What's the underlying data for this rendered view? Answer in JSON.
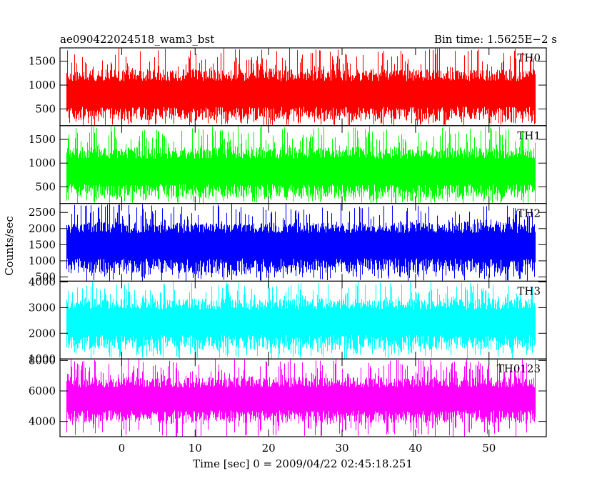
{
  "chart_data": {
    "type": "line",
    "title_left": "ae090422024518_wam3_bst",
    "title_right": "Bin time: 1.5625E−2 s",
    "xlabel": "Time [sec] 0 = 2009/04/22 02:45:18.251",
    "ylabel": "Counts/sec",
    "xlim": [
      -8.4,
      57.8
    ],
    "x_ticks": [
      0,
      10,
      20,
      30,
      40,
      50
    ],
    "data_x_range": [
      -7.5,
      56.2
    ],
    "grid": false,
    "panels": [
      {
        "name": "TH0",
        "color": "#ff0000",
        "ylim": [
          150,
          1780
        ],
        "y_ticks": [
          500,
          1000,
          1500
        ],
        "typical_range": [
          260,
          1330
        ],
        "extreme_range": [
          150,
          1780
        ],
        "mean": 780
      },
      {
        "name": "TH1",
        "color": "#00ff00",
        "ylim": [
          150,
          1790
        ],
        "y_ticks": [
          500,
          1000,
          1500
        ],
        "typical_range": [
          270,
          1340
        ],
        "extreme_range": [
          150,
          1790
        ],
        "mean": 790
      },
      {
        "name": "TH2",
        "color": "#0000ff",
        "ylim": [
          370,
          2780
        ],
        "y_ticks": [
          500,
          1000,
          1500,
          2000,
          2500
        ],
        "typical_range": [
          620,
          2200
        ],
        "extreme_range": [
          370,
          2780
        ],
        "mean": 1450
      },
      {
        "name": "TH3",
        "color": "#00ffff",
        "ylim": [
          1000,
          4030
        ],
        "y_ticks": [
          1000,
          2000,
          3000,
          4000
        ],
        "typical_range": [
          1350,
          3350
        ],
        "extreme_range": [
          1000,
          4030
        ],
        "mean": 2400
      },
      {
        "name": "TH0123",
        "color": "#ff00ff",
        "ylim": [
          3000,
          8100
        ],
        "y_ticks": [
          4000,
          6000,
          8000
        ],
        "typical_range": [
          3900,
          6900
        ],
        "extreme_range": [
          3000,
          8100
        ],
        "mean": 5400
      }
    ]
  }
}
